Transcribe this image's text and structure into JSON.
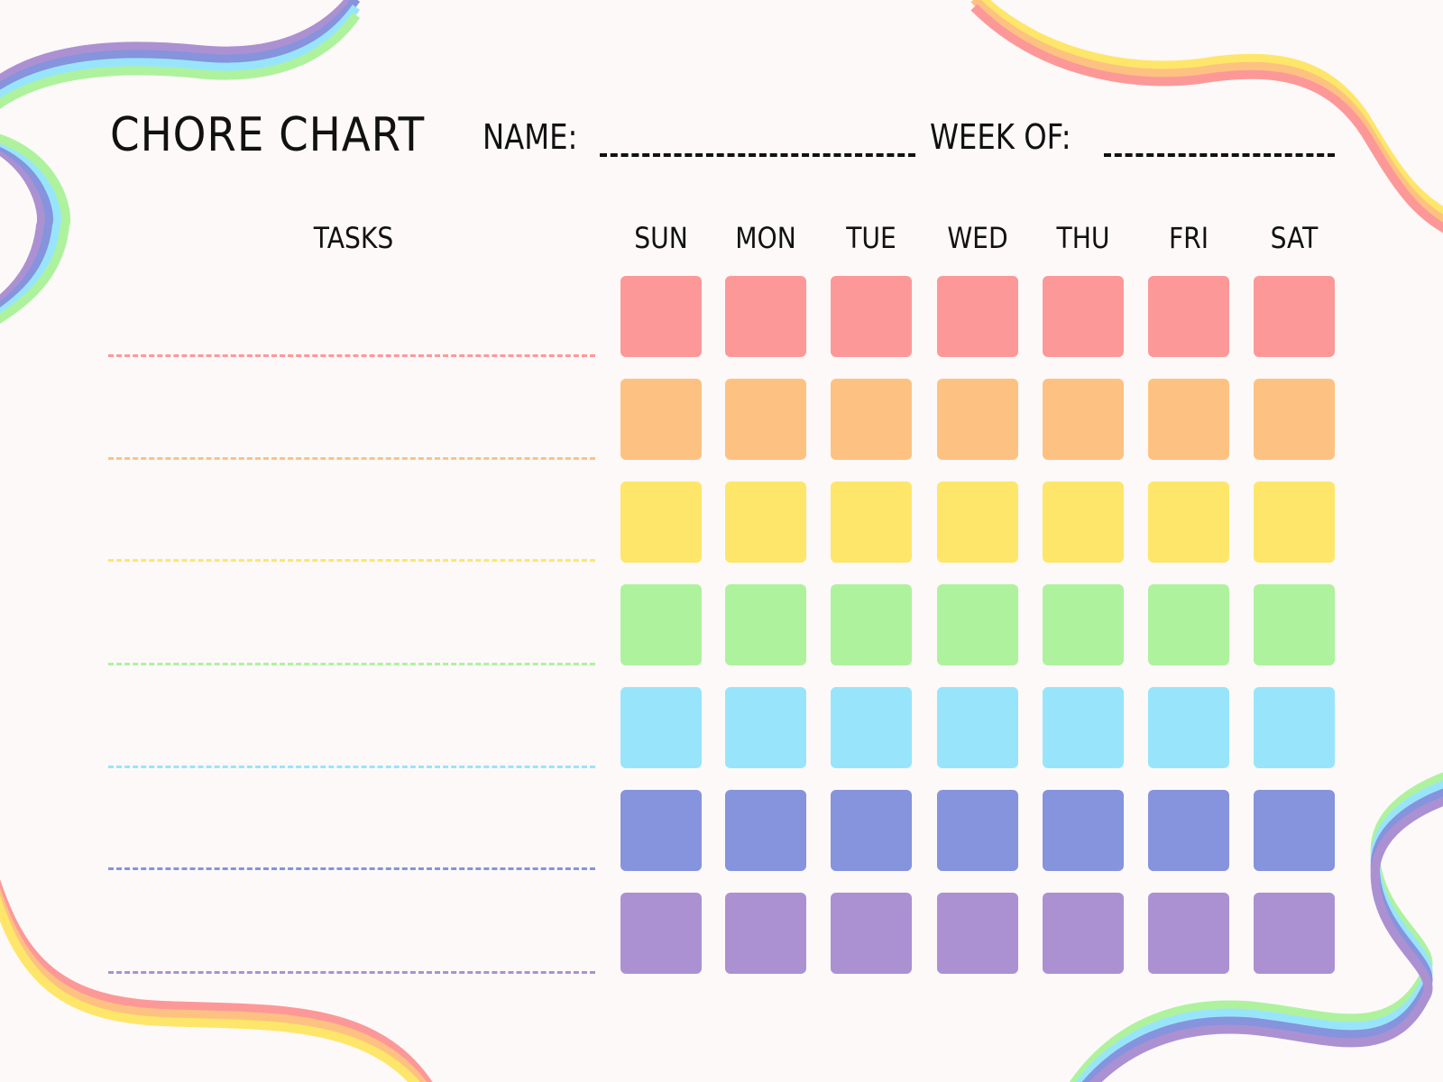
{
  "header": {
    "title": "CHORE CHART",
    "name_label": "NAME:",
    "week_label": "WEEK OF:"
  },
  "grid": {
    "tasks_header": "TASKS",
    "days": [
      "SUN",
      "MON",
      "TUE",
      "WED",
      "THU",
      "FRI",
      "SAT"
    ],
    "row_colors": [
      "#fd9899",
      "#fdc281",
      "#fee66a",
      "#aef29e",
      "#98e5fb",
      "#8693dd",
      "#ab91d2"
    ],
    "tasks": [
      "",
      "",
      "",
      "",
      "",
      "",
      ""
    ]
  },
  "decoration": {
    "rainbow_warm": [
      "#fee66a",
      "#fdc281",
      "#fd9899"
    ],
    "rainbow_cool": [
      "#aef29e",
      "#98e5fb",
      "#8693dd",
      "#ab91d2"
    ]
  },
  "background": "#fdf9f9"
}
